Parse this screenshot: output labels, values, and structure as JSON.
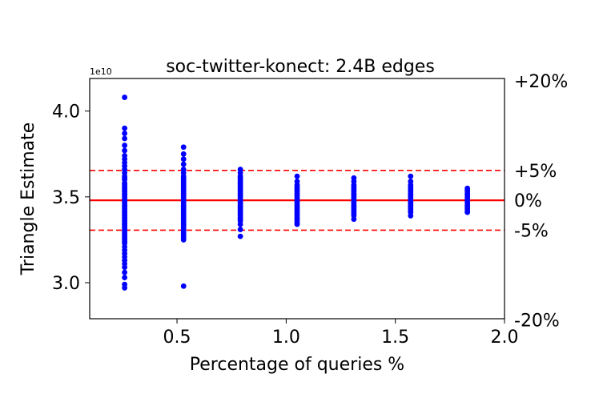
{
  "chart_data": {
    "type": "scatter",
    "title": "soc-twitter-konect: 2.4B edges",
    "xlabel": "Percentage of queries %",
    "ylabel": "Triangle Estimate",
    "y_offset_label": "1e10",
    "xlim": [
      0.1,
      2.0
    ],
    "ylim": [
      2.79,
      4.19
    ],
    "x_ticks": [
      0.5,
      1.0,
      1.5,
      2.0
    ],
    "x_tick_labels": [
      "0.5",
      "1.0",
      "1.5",
      "2.0"
    ],
    "y_ticks": [
      3.0,
      3.5,
      4.0
    ],
    "y_tick_labels": [
      "3.0",
      "3.5",
      "4.0"
    ],
    "true_value": 3.48,
    "right_axis_labels": [
      {
        "label": "+20%",
        "value": 4.176
      },
      {
        "label": "+5%",
        "value": 3.654
      },
      {
        "label": "0%",
        "value": 3.48
      },
      {
        "label": "-5%",
        "value": 3.306
      },
      {
        "label": "-20%",
        "value": 2.784
      }
    ],
    "reference_lines": [
      {
        "label": "0%",
        "value": 3.48,
        "style": "solid",
        "color": "#ff0000"
      },
      {
        "label": "+5%",
        "value": 3.654,
        "style": "dashed",
        "color": "#ff0000"
      },
      {
        "label": "-5%",
        "value": 3.306,
        "style": "dashed",
        "color": "#ff0000"
      }
    ],
    "point_color": "#0000ff",
    "grid": false,
    "series": [
      {
        "x": 0.26,
        "values": [
          4.08,
          3.9,
          3.87,
          3.84,
          3.8,
          3.77,
          3.74,
          3.72,
          3.7,
          3.68,
          3.66,
          3.64,
          3.62,
          3.61,
          3.6,
          3.58,
          3.57,
          3.56,
          3.55,
          3.54,
          3.53,
          3.52,
          3.51,
          3.5,
          3.49,
          3.48,
          3.47,
          3.46,
          3.45,
          3.44,
          3.43,
          3.42,
          3.41,
          3.4,
          3.39,
          3.38,
          3.37,
          3.36,
          3.35,
          3.34,
          3.33,
          3.32,
          3.31,
          3.3,
          3.29,
          3.28,
          3.27,
          3.26,
          3.25,
          3.24,
          3.23,
          3.21,
          3.19,
          3.17,
          3.15,
          3.13,
          3.11,
          3.09,
          3.06,
          3.03,
          2.99,
          2.97
        ]
      },
      {
        "x": 0.53,
        "values": [
          3.79,
          3.75,
          3.72,
          3.69,
          3.66,
          3.64,
          3.62,
          3.61,
          3.6,
          3.59,
          3.58,
          3.57,
          3.56,
          3.55,
          3.54,
          3.53,
          3.52,
          3.51,
          3.5,
          3.49,
          3.48,
          3.47,
          3.46,
          3.45,
          3.44,
          3.43,
          3.42,
          3.41,
          3.4,
          3.39,
          3.38,
          3.37,
          3.36,
          3.35,
          3.34,
          3.33,
          3.32,
          3.31,
          3.3,
          3.29,
          3.28,
          3.27,
          3.26,
          3.25,
          2.98
        ]
      },
      {
        "x": 0.79,
        "values": [
          3.66,
          3.64,
          3.62,
          3.61,
          3.6,
          3.59,
          3.58,
          3.57,
          3.56,
          3.55,
          3.54,
          3.53,
          3.52,
          3.51,
          3.5,
          3.49,
          3.48,
          3.47,
          3.46,
          3.45,
          3.44,
          3.43,
          3.42,
          3.41,
          3.4,
          3.39,
          3.38,
          3.37,
          3.36,
          3.34,
          3.31,
          3.27
        ]
      },
      {
        "x": 1.05,
        "values": [
          3.62,
          3.59,
          3.57,
          3.56,
          3.55,
          3.54,
          3.53,
          3.52,
          3.51,
          3.5,
          3.49,
          3.48,
          3.47,
          3.46,
          3.45,
          3.44,
          3.43,
          3.42,
          3.41,
          3.4,
          3.39,
          3.38,
          3.37,
          3.36,
          3.35,
          3.34
        ]
      },
      {
        "x": 1.31,
        "values": [
          3.61,
          3.59,
          3.57,
          3.56,
          3.55,
          3.54,
          3.53,
          3.52,
          3.51,
          3.5,
          3.49,
          3.48,
          3.47,
          3.46,
          3.45,
          3.44,
          3.43,
          3.42,
          3.41,
          3.4,
          3.39,
          3.37
        ]
      },
      {
        "x": 1.57,
        "values": [
          3.62,
          3.59,
          3.57,
          3.56,
          3.55,
          3.54,
          3.53,
          3.52,
          3.51,
          3.5,
          3.49,
          3.48,
          3.47,
          3.46,
          3.45,
          3.44,
          3.43,
          3.42,
          3.41,
          3.39
        ]
      },
      {
        "x": 1.83,
        "values": [
          3.55,
          3.54,
          3.53,
          3.52,
          3.51,
          3.5,
          3.49,
          3.48,
          3.47,
          3.46,
          3.45,
          3.44,
          3.43,
          3.42,
          3.41
        ]
      }
    ]
  }
}
